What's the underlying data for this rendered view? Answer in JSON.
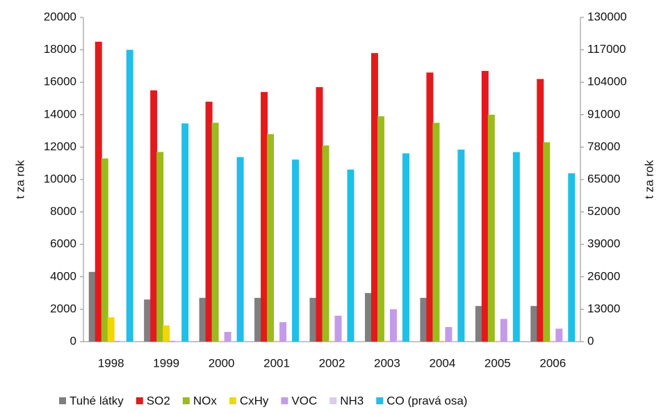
{
  "chart_data": {
    "type": "bar",
    "categories": [
      "1998",
      "1999",
      "2000",
      "2001",
      "2002",
      "2003",
      "2004",
      "2005",
      "2006"
    ],
    "y_label": "t za rok",
    "y2_label": "t za rok",
    "ylim": [
      0,
      20000
    ],
    "yticks": [
      0,
      2000,
      4000,
      6000,
      8000,
      10000,
      12000,
      14000,
      16000,
      18000,
      20000
    ],
    "y2lim": [
      0,
      130000
    ],
    "y2ticks": [
      0,
      13000,
      26000,
      39000,
      52000,
      65000,
      78000,
      91000,
      104000,
      117000,
      130000
    ],
    "series": [
      {
        "name": "Tuhé látky",
        "color": "#7f7f7f",
        "values": [
          4300,
          2600,
          2700,
          2700,
          2700,
          3000,
          2700,
          2200,
          2200
        ]
      },
      {
        "name": "SO2",
        "color": "#e31a1c",
        "values": [
          18500,
          15500,
          14800,
          15400,
          15700,
          17800,
          16600,
          16700,
          16200
        ]
      },
      {
        "name": "NOx",
        "color": "#9bbb1c",
        "values": [
          11300,
          11700,
          13500,
          12800,
          12100,
          13900,
          13500,
          14000,
          12300
        ]
      },
      {
        "name": "CxHy",
        "color": "#f2d600",
        "values": [
          1500,
          1000,
          50,
          50,
          50,
          50,
          50,
          50,
          50
        ]
      },
      {
        "name": "VOC",
        "color": "#c39be8",
        "values": [
          50,
          50,
          600,
          1200,
          1600,
          2000,
          900,
          1400,
          800
        ]
      },
      {
        "name": "NH3",
        "color": "#d8ccf0",
        "values": [
          50,
          50,
          50,
          50,
          50,
          100,
          50,
          50,
          50
        ]
      },
      {
        "name": "CO (pravá osa)",
        "color": "#1ec0e8",
        "axis": "y2",
        "values": [
          117000,
          87500,
          74000,
          73000,
          69000,
          75500,
          77000,
          76000,
          67500
        ]
      }
    ]
  }
}
